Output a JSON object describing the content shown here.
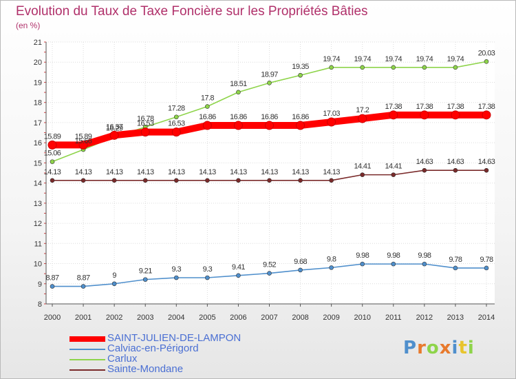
{
  "chart_data": {
    "type": "line",
    "title": "Evolution du Taux de Taxe Foncière sur les Propriétés Bâties",
    "subtitle": "(en %)",
    "xlabel": "",
    "ylabel": "",
    "categories": [
      "2000",
      "2001",
      "2002",
      "2003",
      "2004",
      "2005",
      "2006",
      "2007",
      "2008",
      "2009",
      "2010",
      "2011",
      "2012",
      "2013",
      "2014"
    ],
    "ylim": [
      8,
      21
    ],
    "yticks": [
      "8",
      "9",
      "10",
      "11",
      "12",
      "13",
      "14",
      "15",
      "16",
      "17",
      "18",
      "19",
      "20",
      "21"
    ],
    "grid": true,
    "legend_position": "bottom-left",
    "series": [
      {
        "name": "SAINT-JULIEN-DE-LAMPON",
        "color": "#ff0000",
        "values": [
          15.89,
          15.89,
          16.37,
          16.53,
          16.53,
          16.86,
          16.86,
          16.86,
          16.86,
          17.03,
          17.2,
          17.38,
          17.38,
          17.38,
          17.38
        ],
        "labels": [
          "15.89",
          "15.89",
          "16.37",
          "16.53",
          "16.53",
          "16.86",
          "16.86",
          "16.86",
          "16.86",
          "17.03",
          "17.2",
          "17.38",
          "17.38",
          "17.38",
          "17.38"
        ]
      },
      {
        "name": "Calviac-en-Périgord",
        "color": "#4f8fcc",
        "values": [
          8.87,
          8.87,
          9,
          9.21,
          9.3,
          9.3,
          9.41,
          9.52,
          9.68,
          9.8,
          9.98,
          9.98,
          9.98,
          9.78,
          9.78
        ],
        "labels": [
          "8.87",
          "8.87",
          "9",
          "9.21",
          "9.3",
          "9.3",
          "9.41",
          "9.52",
          "9.68",
          "9.8",
          "9.98",
          "9.98",
          "9.98",
          "9.78",
          "9.78"
        ]
      },
      {
        "name": "Carlux",
        "color": "#8ed44a",
        "values": [
          15.06,
          15.66,
          16.29,
          16.78,
          17.28,
          17.8,
          18.51,
          18.97,
          19.35,
          19.74,
          19.74,
          19.74,
          19.74,
          19.74,
          20.03
        ],
        "labels": [
          "15.06",
          "15.66",
          "16.29",
          "16.78",
          "17.28",
          "17.8",
          "18.51",
          "18.97",
          "19.35",
          "19.74",
          "19.74",
          "19.74",
          "19.74",
          "19.74",
          "20.03"
        ]
      },
      {
        "name": "Sainte-Mondane",
        "color": "#7a2a2a",
        "values": [
          14.13,
          14.13,
          14.13,
          14.13,
          14.13,
          14.13,
          14.13,
          14.13,
          14.13,
          14.13,
          14.41,
          14.41,
          14.63,
          14.63,
          14.63
        ],
        "labels": [
          "14.13",
          "14.13",
          "14.13",
          "14.13",
          "14.13",
          "14.13",
          "14.13",
          "14.13",
          "14.13",
          "14.13",
          "14.41",
          "14.41",
          "14.63",
          "14.63",
          "14.63"
        ]
      }
    ]
  },
  "logo": {
    "text": "Proxiti"
  }
}
